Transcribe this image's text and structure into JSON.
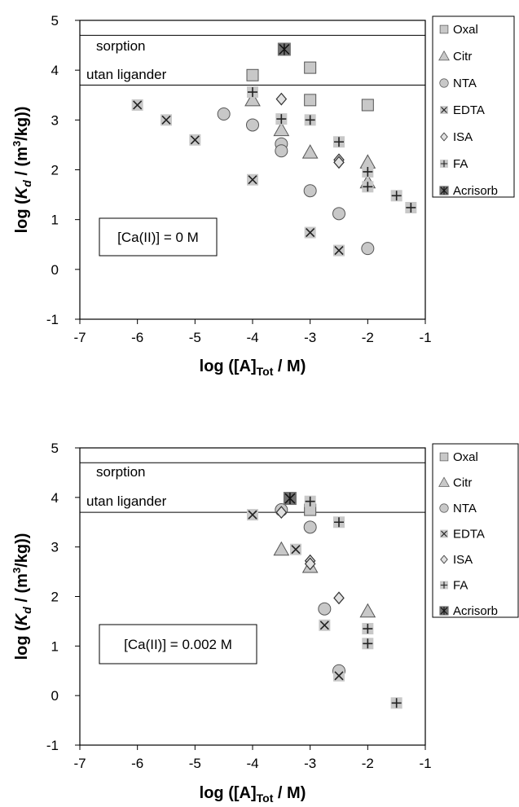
{
  "chart_data": [
    {
      "type": "scatter",
      "xlim": [
        -7,
        -1
      ],
      "ylim": [
        -1,
        5
      ],
      "xticks": [
        -7,
        -6,
        -5,
        -4,
        -3,
        -2,
        -1
      ],
      "yticks": [
        -1,
        0,
        1,
        2,
        3,
        4,
        5
      ],
      "xlabel_main": "log ([A]",
      "xlabel_sub": "Tot",
      "xlabel_end": " / M)",
      "ylabel_main": "log (",
      "ylabel_k": "K",
      "ylabel_d": "d",
      "ylabel_unit": " / (m",
      "ylabel_sup": "3",
      "ylabel_end": "/kg))",
      "hlines": [
        4.7,
        3.7
      ],
      "band_text": [
        "sorption",
        "utan ligander"
      ],
      "annotation": "[Ca(II)] = 0 M",
      "legend_position": "right",
      "series": [
        {
          "name": "Oxal",
          "marker": "square",
          "x": [
            -4,
            -3,
            -3,
            -2
          ],
          "y": [
            3.9,
            4.05,
            3.4,
            3.3
          ]
        },
        {
          "name": "Citr",
          "marker": "triangle",
          "x": [
            -4,
            -3.5,
            -3,
            -2,
            -2
          ],
          "y": [
            3.4,
            2.8,
            2.35,
            2.15,
            1.75
          ]
        },
        {
          "name": "NTA",
          "marker": "circle",
          "x": [
            -4.5,
            -4,
            -3.5,
            -3.5,
            -3,
            -2.5,
            -2
          ],
          "y": [
            3.12,
            2.9,
            2.52,
            2.38,
            1.58,
            1.12,
            0.42
          ]
        },
        {
          "name": "EDTA",
          "marker": "x",
          "x": [
            -6,
            -5.5,
            -5,
            -4,
            -3,
            -2.5
          ],
          "y": [
            3.3,
            3.0,
            2.6,
            1.8,
            0.74,
            0.38
          ]
        },
        {
          "name": "ISA",
          "marker": "diamond",
          "x": [
            -3.5,
            -2.5,
            -2.5
          ],
          "y": [
            3.42,
            2.2,
            2.15
          ]
        },
        {
          "name": "FA",
          "marker": "plus",
          "x": [
            -4,
            -3.5,
            -3,
            -2.5,
            -2,
            -2,
            -1.5,
            -1.25
          ],
          "y": [
            3.56,
            3.02,
            3.0,
            2.56,
            1.96,
            1.66,
            1.48,
            1.24
          ]
        },
        {
          "name": "Acrisorb",
          "marker": "star",
          "x": [
            -3.45
          ],
          "y": [
            4.42
          ]
        }
      ]
    },
    {
      "type": "scatter",
      "xlim": [
        -7,
        -1
      ],
      "ylim": [
        -1,
        5
      ],
      "xticks": [
        -7,
        -6,
        -5,
        -4,
        -3,
        -2,
        -1
      ],
      "yticks": [
        -1,
        0,
        1,
        2,
        3,
        4,
        5
      ],
      "xlabel_main": "log ([A]",
      "xlabel_sub": "Tot",
      "xlabel_end": " / M)",
      "ylabel_main": "log (",
      "ylabel_k": "K",
      "ylabel_d": "d",
      "ylabel_unit": " / (m",
      "ylabel_sup": "3",
      "ylabel_end": "/kg))",
      "hlines": [
        4.7,
        3.7
      ],
      "band_text": [
        "sorption",
        "utan ligander"
      ],
      "annotation": "[Ca(II)] = 0.002 M",
      "legend_position": "right",
      "series": [
        {
          "name": "Oxal",
          "marker": "square",
          "x": [
            -3
          ],
          "y": [
            3.75
          ]
        },
        {
          "name": "Citr",
          "marker": "triangle",
          "x": [
            -3.5,
            -3,
            -2
          ],
          "y": [
            2.95,
            2.6,
            1.7
          ]
        },
        {
          "name": "NTA",
          "marker": "circle",
          "x": [
            -3.5,
            -3,
            -2.75,
            -2.5
          ],
          "y": [
            3.75,
            3.4,
            1.75,
            0.5
          ]
        },
        {
          "name": "EDTA",
          "marker": "x",
          "x": [
            -4,
            -3.25,
            -2.75,
            -2.5
          ],
          "y": [
            3.65,
            2.95,
            1.42,
            0.4
          ]
        },
        {
          "name": "ISA",
          "marker": "diamond",
          "x": [
            -3.5,
            -3,
            -3,
            -2.5
          ],
          "y": [
            3.7,
            2.72,
            2.66,
            1.97
          ]
        },
        {
          "name": "FA",
          "marker": "plus",
          "x": [
            -3,
            -2.5,
            -2,
            -2,
            -1.5
          ],
          "y": [
            3.92,
            3.5,
            1.35,
            1.05,
            -0.15
          ]
        },
        {
          "name": "Acrisorb",
          "marker": "star",
          "x": [
            -3.35
          ],
          "y": [
            3.98
          ]
        }
      ]
    }
  ]
}
